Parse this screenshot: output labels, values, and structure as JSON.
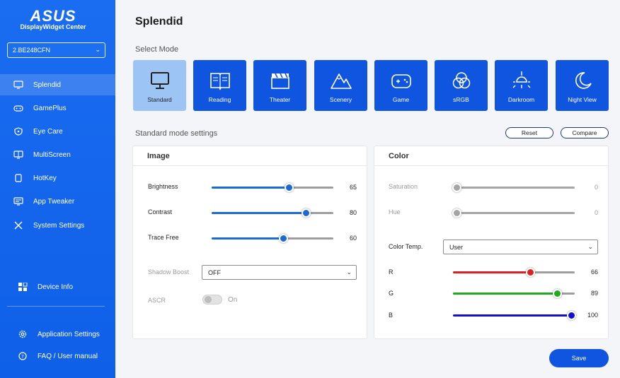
{
  "sidebar": {
    "brand": "ASUS",
    "app_name": "DisplayWidget Center",
    "device": "2.BE248CFN",
    "items": [
      {
        "label": "Splendid",
        "icon": "monitor-icon"
      },
      {
        "label": "GamePlus",
        "icon": "gamepad-icon"
      },
      {
        "label": "Eye Care",
        "icon": "eye-shield-icon"
      },
      {
        "label": "MultiScreen",
        "icon": "multiscreen-icon"
      },
      {
        "label": "HotKey",
        "icon": "hotkey-icon"
      },
      {
        "label": "App Tweaker",
        "icon": "app-tweaker-icon"
      },
      {
        "label": "System Settings",
        "icon": "tools-icon"
      }
    ],
    "device_info": "Device Info",
    "app_settings": "Application Settings",
    "faq": "FAQ / User manual"
  },
  "main": {
    "title": "Splendid",
    "select_mode_label": "Select Mode",
    "modes": [
      {
        "label": "Standard",
        "icon": "monitor-icon",
        "selected": true
      },
      {
        "label": "Reading",
        "icon": "book-icon"
      },
      {
        "label": "Theater",
        "icon": "clapperboard-icon"
      },
      {
        "label": "Scenery",
        "icon": "mountain-icon"
      },
      {
        "label": "Game",
        "icon": "gamepad-icon"
      },
      {
        "label": "sRGB",
        "icon": "rgb-circles-icon"
      },
      {
        "label": "Darkroom",
        "icon": "lamp-icon"
      },
      {
        "label": "Night View",
        "icon": "moon-icon"
      }
    ],
    "settings_label": "Standard mode settings",
    "reset_label": "Reset",
    "compare_label": "Compare",
    "image": {
      "title": "Image",
      "brightness": {
        "label": "Brightness",
        "value": "65",
        "min": 0,
        "max": 100
      },
      "contrast": {
        "label": "Contrast",
        "value": "80",
        "min": 0,
        "max": 100
      },
      "trace_free": {
        "label": "Trace Free",
        "value": "60",
        "min": 0,
        "max": 100
      },
      "shadow_boost": {
        "label": "Shadow Boost",
        "value": "OFF"
      },
      "ascr": {
        "label": "ASCR",
        "state": "On"
      }
    },
    "color": {
      "title": "Color",
      "saturation": {
        "label": "Saturation",
        "value": "0"
      },
      "hue": {
        "label": "Hue",
        "value": "0"
      },
      "color_temp": {
        "label": "Color Temp.",
        "value": "User"
      },
      "r": {
        "label": "R",
        "value": "66"
      },
      "g": {
        "label": "G",
        "value": "89"
      },
      "b": {
        "label": "B",
        "value": "100"
      }
    },
    "save_label": "Save"
  },
  "colors": {
    "accent": "#0f55e0",
    "sidebar": "#1a6cf0",
    "red": "#e02020",
    "green": "#1faa1f",
    "blue": "#1010d0"
  }
}
